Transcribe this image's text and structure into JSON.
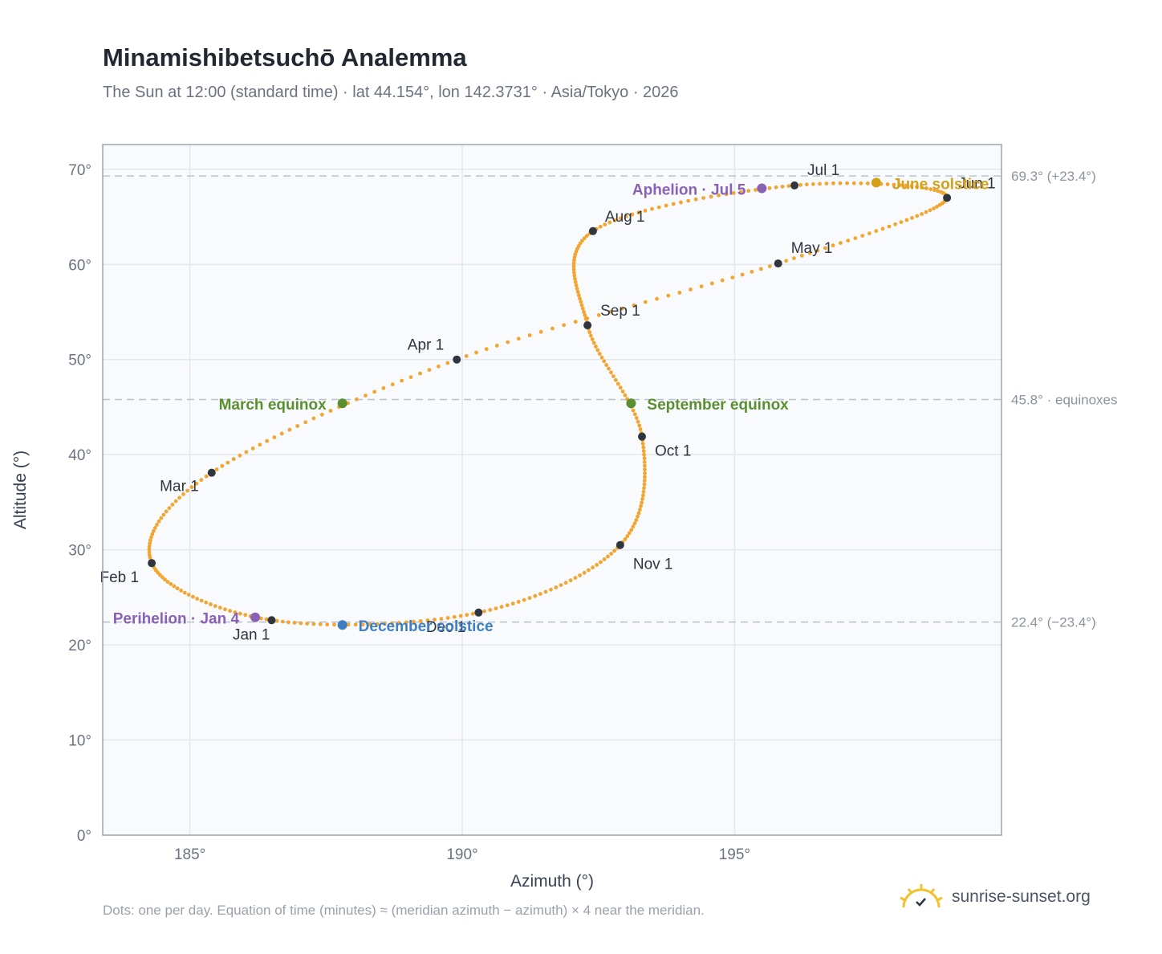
{
  "title": "Minamishibetsuchō Analemma",
  "subtitle": "The Sun at 12:00 (standard time) · lat 44.154°, lon 142.3731° · Asia/Tokyo · 2026",
  "footnote": "Dots: one per day. Equation of time (minutes) ≈ (meridian azimuth − azimuth) × 4 near the meridian.",
  "brand": "sunrise-sunset.org",
  "colors": {
    "curve": "#f2a531",
    "month_marker": "#2f3640",
    "equinox": "#5a8f31",
    "june_solstice": "#d4a017",
    "december_solstice": "#3f7fc1",
    "aphelion_perihelion": "#8a62b5",
    "plot_background": "#f8fafc"
  },
  "chart_data": {
    "type": "scatter",
    "title": "Minamishibetsuchō Analemma",
    "xlabel": "Azimuth (°)",
    "ylabel": "Altitude (°)",
    "xlim": [
      183.4,
      199.9
    ],
    "ylim": [
      0,
      72.6
    ],
    "x_ticks": [
      {
        "value": 185,
        "label": "185°"
      },
      {
        "value": 190,
        "label": "190°"
      },
      {
        "value": 195,
        "label": "195°"
      }
    ],
    "y_ticks": [
      {
        "value": 0,
        "label": "0°"
      },
      {
        "value": 10,
        "label": "10°"
      },
      {
        "value": 20,
        "label": "20°"
      },
      {
        "value": 30,
        "label": "30°"
      },
      {
        "value": 40,
        "label": "40°"
      },
      {
        "value": 50,
        "label": "50°"
      },
      {
        "value": 60,
        "label": "60°"
      },
      {
        "value": 70,
        "label": "70°"
      }
    ],
    "grid": true,
    "reference_lines": [
      {
        "altitude": 69.3,
        "label": "69.3° (+23.4°)"
      },
      {
        "altitude": 45.8,
        "label": "45.8° · equinoxes"
      },
      {
        "altitude": 22.4,
        "label": "22.4° (−23.4°)"
      }
    ],
    "months": [
      {
        "label": "Jan 1",
        "azimuth": 186.5,
        "altitude": 22.6
      },
      {
        "label": "Feb 1",
        "azimuth": 184.3,
        "altitude": 28.6
      },
      {
        "label": "Mar 1",
        "azimuth": 185.4,
        "altitude": 38.1
      },
      {
        "label": "Apr 1",
        "azimuth": 189.9,
        "altitude": 50.0
      },
      {
        "label": "May 1",
        "azimuth": 195.8,
        "altitude": 60.1
      },
      {
        "label": "Jun 1",
        "azimuth": 198.9,
        "altitude": 67.0
      },
      {
        "label": "Jul 1",
        "azimuth": 196.1,
        "altitude": 68.3
      },
      {
        "label": "Aug 1",
        "azimuth": 192.4,
        "altitude": 63.5
      },
      {
        "label": "Sep 1",
        "azimuth": 192.3,
        "altitude": 53.6
      },
      {
        "label": "Oct 1",
        "azimuth": 193.3,
        "altitude": 41.9
      },
      {
        "label": "Nov 1",
        "azimuth": 192.9,
        "altitude": 30.5
      },
      {
        "label": "Dec 1",
        "azimuth": 190.3,
        "altitude": 23.4
      }
    ],
    "events": [
      {
        "label": "March equinox",
        "azimuth": 187.8,
        "altitude": 45.4,
        "kind": "equinox"
      },
      {
        "label": "June solstice",
        "azimuth": 197.6,
        "altitude": 68.6,
        "kind": "june_solstice"
      },
      {
        "label": "September equinox",
        "azimuth": 193.1,
        "altitude": 45.4,
        "kind": "equinox"
      },
      {
        "label": "December solstice",
        "azimuth": 187.8,
        "altitude": 22.1,
        "kind": "december_solstice"
      },
      {
        "label": "Aphelion · Jul 5",
        "azimuth": 195.5,
        "altitude": 68.0,
        "kind": "aphelion"
      },
      {
        "label": "Perihelion · Jan 4",
        "azimuth": 186.2,
        "altitude": 22.9,
        "kind": "perihelion"
      }
    ]
  }
}
